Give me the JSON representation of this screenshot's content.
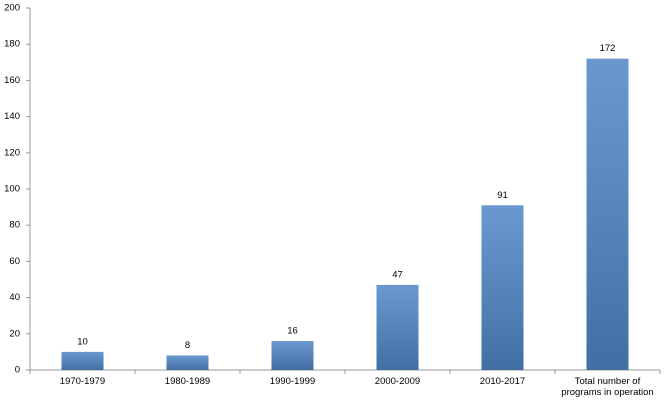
{
  "chart_data": {
    "type": "bar",
    "categories": [
      "1970-1979",
      "1980-1989",
      "1990-1999",
      "2000-2009",
      "2010-2017",
      "Total number of programs in operation"
    ],
    "values": [
      10,
      8,
      16,
      47,
      91,
      172
    ],
    "color": "#4f86c6",
    "ylim": [
      0,
      200
    ],
    "yticks": [
      0,
      20,
      40,
      60,
      80,
      100,
      120,
      140,
      160,
      180,
      200
    ],
    "grid": false
  }
}
